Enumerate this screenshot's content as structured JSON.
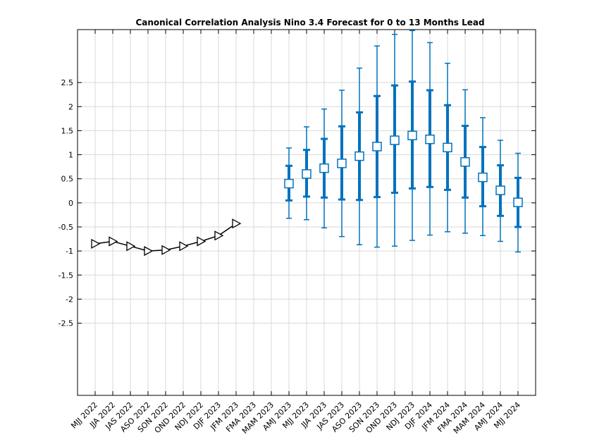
{
  "chart_data": {
    "type": "line",
    "title": "Canonical Correlation Analysis Nino 3.4 Forecast for 0 to 13 Months Lead",
    "xlabel": "",
    "ylabel": "",
    "categories": [
      "MJJ 2022",
      "JJA 2022",
      "JAS 2022",
      "ASO 2022",
      "SON 2022",
      "OND 2022",
      "NDJ 2022",
      "DJF 2023",
      "JFM 2023",
      "FMA 2023",
      "MAM 2023",
      "AMJ 2023",
      "MJJ 2023",
      "JJA 2023",
      "JAS 2023",
      "ASO 2023",
      "SON 2023",
      "OND 2023",
      "NDJ 2023",
      "DJF 2024",
      "JFM 2024",
      "FMA 2024",
      "MAM 2024",
      "AMJ 2024",
      "MJJ 2024"
    ],
    "ylim": [
      -4,
      3.6
    ],
    "yticks": [
      -2.5,
      -2,
      -1.5,
      -1,
      -0.5,
      0,
      0.5,
      1,
      1.5,
      2,
      2.5
    ],
    "ytick_labels": [
      "-2.5",
      "-2",
      "-1.5",
      "-1",
      "-0.5",
      "0",
      "0.5",
      "1",
      "1.5",
      "2",
      "2.5"
    ],
    "grid": true,
    "observed": {
      "color": "#000000",
      "marker": "triangle-right",
      "x": [
        "MJJ 2022",
        "JJA 2022",
        "JAS 2022",
        "ASO 2022",
        "SON 2022",
        "OND 2022",
        "NDJ 2022",
        "DJF 2023",
        "JFM 2023"
      ],
      "values": [
        -0.85,
        -0.8,
        -0.9,
        -1.0,
        -0.98,
        -0.9,
        -0.8,
        -0.68,
        -0.43
      ]
    },
    "forecast": {
      "color": "#0072BD",
      "marker": "square",
      "x": [
        "AMJ 2023",
        "MJJ 2023",
        "JJA 2023",
        "JAS 2023",
        "ASO 2023",
        "SON 2023",
        "OND 2023",
        "NDJ 2023",
        "DJF 2024",
        "JFM 2024",
        "FMA 2024",
        "MAM 2024",
        "AMJ 2024",
        "MJJ 2024"
      ],
      "values": [
        0.4,
        0.6,
        0.72,
        0.82,
        0.97,
        1.17,
        1.3,
        1.4,
        1.32,
        1.15,
        0.85,
        0.53,
        0.26,
        0.01
      ],
      "inner_lower": [
        0.05,
        0.13,
        0.11,
        0.07,
        0.06,
        0.12,
        0.21,
        0.3,
        0.33,
        0.27,
        0.11,
        -0.07,
        -0.27,
        -0.5
      ],
      "inner_upper": [
        0.77,
        1.1,
        1.33,
        1.59,
        1.88,
        2.22,
        2.44,
        2.52,
        2.34,
        2.03,
        1.6,
        1.16,
        0.78,
        0.52
      ],
      "outer_lower": [
        -0.32,
        -0.35,
        -0.52,
        -0.7,
        -0.87,
        -0.92,
        -0.9,
        -0.78,
        -0.67,
        -0.6,
        -0.63,
        -0.68,
        -0.8,
        -1.02
      ],
      "outer_upper": [
        1.14,
        1.58,
        1.95,
        2.34,
        2.8,
        3.26,
        3.5,
        3.58,
        3.33,
        2.9,
        2.35,
        1.77,
        1.3,
        1.03
      ]
    }
  }
}
